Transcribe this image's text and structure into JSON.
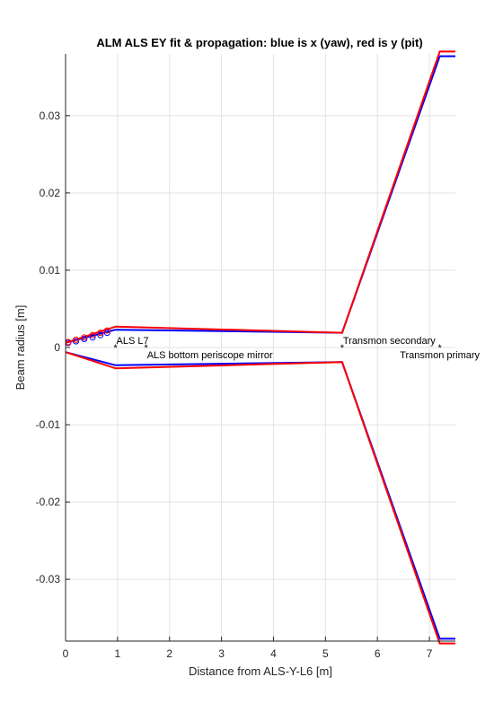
{
  "chart_data": {
    "type": "line",
    "title": "ALM ALS EY fit & propagation: blue is x (yaw), red is y (pit)",
    "xlabel": "Distance from ALS-Y-L6 [m]",
    "ylabel": "Beam radius [m]",
    "xlim": [
      0,
      7.5
    ],
    "ylim": [
      -0.038,
      0.038
    ],
    "xticks": [
      0,
      1,
      2,
      3,
      4,
      5,
      6,
      7
    ],
    "yticks": [
      -0.03,
      -0.02,
      -0.01,
      0,
      0.01,
      0.02,
      0.03
    ],
    "xtick_labels": [
      "0",
      "1",
      "2",
      "3",
      "4",
      "5",
      "6",
      "7"
    ],
    "ytick_labels": [
      "-0.03",
      "-0.02",
      "-0.01",
      "0",
      "0.01",
      "0.02",
      "0.03"
    ],
    "grid": true,
    "series": [
      {
        "color": "#0000ff",
        "x": [
          0,
          0.96,
          5.32,
          7.2,
          7.5
        ],
        "y": [
          0.0006,
          0.0023,
          0.0019,
          0.0377,
          0.0377
        ]
      },
      {
        "color": "#ff0000",
        "x": [
          0,
          0.96,
          5.32,
          7.2,
          7.5
        ],
        "y": [
          0.0006,
          0.0027,
          0.0019,
          0.0383,
          0.0383
        ]
      }
    ],
    "measurements": [
      {
        "color": "#0000ff",
        "x": [
          0.05,
          0.2,
          0.36,
          0.52,
          0.67,
          0.8
        ],
        "y": [
          0.0006,
          0.0008,
          0.0011,
          0.0013,
          0.0016,
          0.0019
        ]
      },
      {
        "color": "#ff0000",
        "x": [
          0.05,
          0.2,
          0.36,
          0.52,
          0.67,
          0.8
        ],
        "y": [
          0.0007,
          0.001,
          0.0013,
          0.0016,
          0.0019,
          0.0022
        ]
      }
    ],
    "annotations": [
      {
        "text": "ALS L7",
        "x": 0.96,
        "y": 0,
        "align": "start",
        "pos": "above"
      },
      {
        "text": "ALS bottom periscope mirror",
        "x": 1.55,
        "y": 0,
        "align": "start",
        "pos": "below"
      },
      {
        "text": "Transmon secondary",
        "x": 5.32,
        "y": 0,
        "align": "start",
        "pos": "above"
      },
      {
        "text": "Transmon primary",
        "x": 7.2,
        "y": 0,
        "align": "middle",
        "pos": "below"
      }
    ]
  }
}
